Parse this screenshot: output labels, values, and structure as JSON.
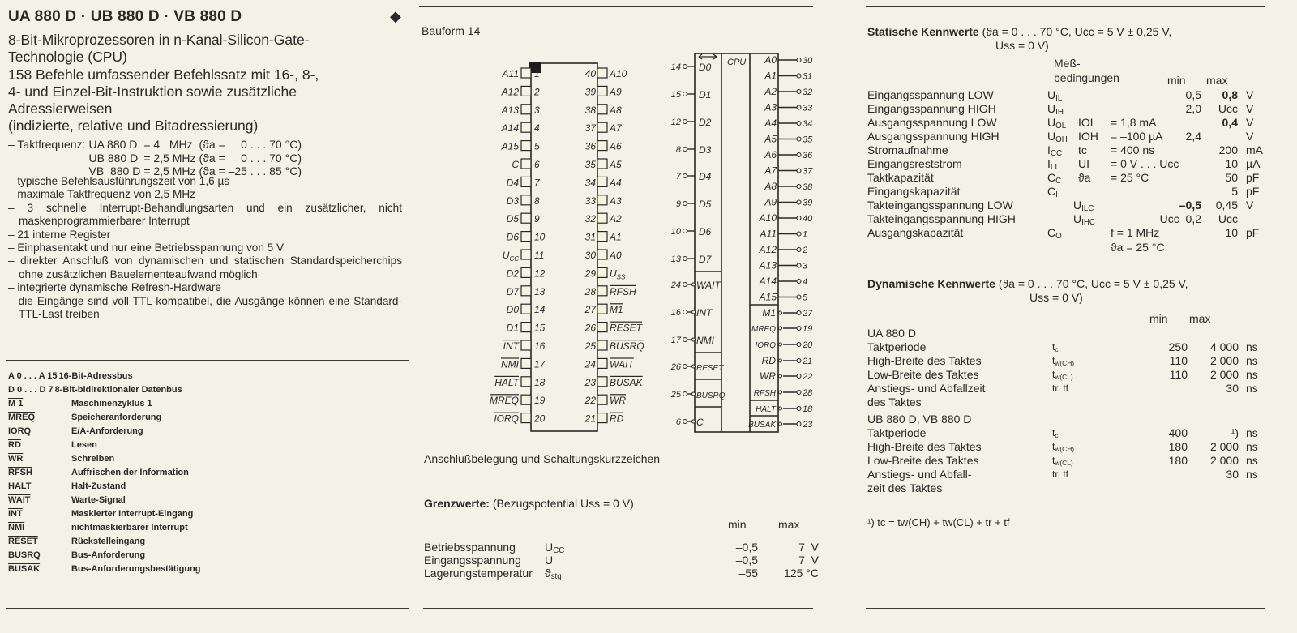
{
  "col1": {
    "title": "UA 880 D · UB 880 D · VB 880 D",
    "marker": "◆",
    "description": [
      "8-Bit-Mikroprozessoren in n-Kanal-Silicon-Gate-",
      "Technologie (CPU)",
      "158 Befehle umfassender Befehlssatz mit 16-, 8-,",
      "4- und Einzel-Bit-Instruktion sowie zusätzliche",
      "Adressierweisen",
      "(indizierte, relative und Bitadressierung)"
    ],
    "taktfrequenz": {
      "label": "– Taktfrequenz:",
      "rows": [
        {
          "type": "UA 880 D",
          "value": "= 4   MHz",
          "temp": "(ϑa =     0 . . . 70 °C)"
        },
        {
          "type": "UB 880 D",
          "value": "= 2,5 MHz",
          "temp": "(ϑa =     0 . . . 70 °C)"
        },
        {
          "type": "VB  880 D",
          "value": "= 2,5 MHz",
          "temp": "(ϑa = –25 . . . 85 °C)"
        }
      ]
    },
    "bullets": [
      "– typische Befehlsausführungszeit von 1,6 µs",
      "– maximale Taktfrequenz von 2,5 MHz",
      "– 3 schnelle Interrupt-Behandlungsarten und ein zusätzlicher, nicht maskenprogrammierbarer Interrupt",
      "– 21 interne Register",
      "– Einphasentakt und nur eine Betriebsspannung von 5 V",
      "– direkter Anschluß von dynamischen und statischen Standardspeicherchips ohne zusätzlichen Bauelementeaufwand möglich",
      "– integrierte dynamische Refresh-Hardware",
      "– die Eingänge sind voll TTL-kompatibel, die Ausgänge können eine Standard-TTL-Last treiben"
    ],
    "legend": [
      {
        "abbr": "A 0 . . . A 15",
        "text": "16-Bit-Adressbus",
        "overline": false
      },
      {
        "abbr": "D 0 . . . D 7",
        "text": "8-Bit-bidirektionaler Datenbus",
        "overline": false
      },
      {
        "abbr": "M 1",
        "text": "Maschinenzyklus 1",
        "overline": true
      },
      {
        "abbr": "MREQ",
        "text": "Speicheranforderung",
        "overline": true
      },
      {
        "abbr": "IORQ",
        "text": "E/A-Anforderung",
        "overline": true
      },
      {
        "abbr": "RD",
        "text": "Lesen",
        "overline": true
      },
      {
        "abbr": "WR",
        "text": "Schreiben",
        "overline": true
      },
      {
        "abbr": "RFSH",
        "text": "Auffrischen der Information",
        "overline": true
      },
      {
        "abbr": "HALT",
        "text": "Halt-Zustand",
        "overline": true
      },
      {
        "abbr": "WAIT",
        "text": "Warte-Signal",
        "overline": true
      },
      {
        "abbr": "INT",
        "text": "Maskierter Interrupt-Eingang",
        "overline": true
      },
      {
        "abbr": "NMI",
        "text": "nichtmaskierbarer Interrupt",
        "overline": true
      },
      {
        "abbr": "RESET",
        "text": "Rückstelleingang",
        "overline": true
      },
      {
        "abbr": "BUSRQ",
        "text": "Bus-Anforderung",
        "overline": true
      },
      {
        "abbr": "BUSAK",
        "text": "Bus-Anforderungsbestätigung",
        "overline": true
      }
    ]
  },
  "col2": {
    "package": "Bauform 14",
    "dip_left": [
      {
        "n": "1",
        "label": "A11"
      },
      {
        "n": "2",
        "label": "A12"
      },
      {
        "n": "3",
        "label": "A13"
      },
      {
        "n": "4",
        "label": "A14"
      },
      {
        "n": "5",
        "label": "A15"
      },
      {
        "n": "6",
        "label": "C"
      },
      {
        "n": "7",
        "label": "D4"
      },
      {
        "n": "8",
        "label": "D3"
      },
      {
        "n": "9",
        "label": "D5"
      },
      {
        "n": "10",
        "label": "D6"
      },
      {
        "n": "11",
        "label": "U",
        "sub": "CC"
      },
      {
        "n": "12",
        "label": "D2"
      },
      {
        "n": "13",
        "label": "D7"
      },
      {
        "n": "14",
        "label": "D0"
      },
      {
        "n": "15",
        "label": "D1"
      },
      {
        "n": "16",
        "label": "INT",
        "bar": true
      },
      {
        "n": "17",
        "label": "NMI",
        "bar": true
      },
      {
        "n": "18",
        "label": "HALT",
        "bar": true
      },
      {
        "n": "19",
        "label": "MREQ",
        "bar": true
      },
      {
        "n": "20",
        "label": "IORQ",
        "bar": true
      }
    ],
    "dip_right": [
      {
        "n": "40",
        "label": "A10"
      },
      {
        "n": "39",
        "label": "A9"
      },
      {
        "n": "38",
        "label": "A8"
      },
      {
        "n": "37",
        "label": "A7"
      },
      {
        "n": "36",
        "label": "A6"
      },
      {
        "n": "35",
        "label": "A5"
      },
      {
        "n": "34",
        "label": "A4"
      },
      {
        "n": "33",
        "label": "A3"
      },
      {
        "n": "32",
        "label": "A2"
      },
      {
        "n": "31",
        "label": "A1"
      },
      {
        "n": "30",
        "label": "A0"
      },
      {
        "n": "29",
        "label": "U",
        "sub": "SS"
      },
      {
        "n": "28",
        "label": "RFSH",
        "bar": true
      },
      {
        "n": "27",
        "label": "M1",
        "bar": true
      },
      {
        "n": "26",
        "label": "RESET",
        "bar": true
      },
      {
        "n": "25",
        "label": "BUSRQ",
        "bar": true
      },
      {
        "n": "24",
        "label": "WAIT",
        "bar": true
      },
      {
        "n": "23",
        "label": "BUSAK",
        "bar": true
      },
      {
        "n": "22",
        "label": "WR",
        "bar": true
      },
      {
        "n": "21",
        "label": "RD",
        "bar": true
      }
    ],
    "symbol": {
      "center_label": "CPU",
      "left": [
        {
          "n": "14",
          "label": "D0"
        },
        {
          "n": "15",
          "label": "D1"
        },
        {
          "n": "12",
          "label": "D2"
        },
        {
          "n": "8",
          "label": "D3"
        },
        {
          "n": "7",
          "label": "D4"
        },
        {
          "n": "9",
          "label": "D5"
        },
        {
          "n": "10",
          "label": "D6"
        },
        {
          "n": "13",
          "label": "D7"
        },
        {
          "n": "24",
          "label": "WAIT",
          "bubble": true
        },
        {
          "n": "16",
          "label": "INT",
          "bubble": true
        },
        {
          "n": "17",
          "label": "NMI",
          "bubble": true
        },
        {
          "n": "26",
          "label": "RESET",
          "bubble": true
        },
        {
          "n": "25",
          "label": "BUSRQ",
          "bubble": true
        },
        {
          "n": "6",
          "label": "C",
          "bubble": true
        }
      ],
      "right": [
        {
          "n": "30",
          "label": "A0"
        },
        {
          "n": "31",
          "label": "A1"
        },
        {
          "n": "32",
          "label": "A2"
        },
        {
          "n": "33",
          "label": "A3"
        },
        {
          "n": "34",
          "label": "A4"
        },
        {
          "n": "35",
          "label": "A5"
        },
        {
          "n": "36",
          "label": "A6"
        },
        {
          "n": "37",
          "label": "A7"
        },
        {
          "n": "38",
          "label": "A8"
        },
        {
          "n": "39",
          "label": "A9"
        },
        {
          "n": "40",
          "label": "A10"
        },
        {
          "n": "1",
          "label": "A11"
        },
        {
          "n": "2",
          "label": "A12"
        },
        {
          "n": "3",
          "label": "A13"
        },
        {
          "n": "4",
          "label": "A14"
        },
        {
          "n": "5",
          "label": "A15"
        },
        {
          "n": "27",
          "label": "M1",
          "bubble": true
        },
        {
          "n": "19",
          "label": "MREQ",
          "bubble": true
        },
        {
          "n": "20",
          "label": "IORQ",
          "bubble": true
        },
        {
          "n": "21",
          "label": "RD",
          "bubble": true
        },
        {
          "n": "22",
          "label": "WR",
          "bubble": true
        },
        {
          "n": "28",
          "label": "RFSH",
          "bubble": true
        },
        {
          "n": "18",
          "label": "HALT",
          "bubble": true
        },
        {
          "n": "23",
          "label": "BUSAK",
          "bubble": true
        }
      ]
    },
    "caption": "Anschlußbelegung und Schaltungskurzzeichen",
    "limits": {
      "title": "Grenzwerte:",
      "subtitle": "(Bezugspotential Uss = 0 V)",
      "min": "min",
      "max": "max",
      "rows": [
        {
          "label": "Betriebsspannung",
          "sym": "U",
          "sub": "CC",
          "min": "–0,5",
          "max": "7  V"
        },
        {
          "label": "Eingangsspannung",
          "sym": "U",
          "sub": "I",
          "min": "–0,5",
          "max": "7  V"
        },
        {
          "label": "Lagerungstemperatur",
          "sym": "ϑ",
          "sub": "stg",
          "min": "–55",
          "max": "125 °C"
        }
      ]
    }
  },
  "col3": {
    "static": {
      "title": "Statische Kennwerte",
      "cond1": "(ϑa = 0 . . . 70 °C, Ucc = 5 V ± 0,25 V,",
      "cond2": "Uss = 0 V)",
      "h_cond1": "Meß-",
      "h_cond2": "bedingungen",
      "h_min": "min",
      "h_max": "max",
      "rows": [
        {
          "label": "Eingangsspannung LOW",
          "sym": "U",
          "sub": "IL",
          "c1": "",
          "c2": "",
          "min": "–0,5",
          "max": "0,8",
          "unit": "V",
          "bold_max": true
        },
        {
          "label": "Eingangsspannung HIGH",
          "sym": "U",
          "sub": "IH",
          "c1": "",
          "c2": "",
          "min": "2,0",
          "max": "Ucc",
          "unit": "V"
        },
        {
          "label": "Ausgangsspannung LOW",
          "sym": "U",
          "sub": "OL",
          "c1": "IOL",
          "c2": "= 1,8 mA",
          "min": "",
          "max": "0,4",
          "unit": "V",
          "bold_max": true
        },
        {
          "label": "Ausgangsspannung HIGH",
          "sym": "U",
          "sub": "OH",
          "c1": "IOH",
          "c2": "= –100 µA",
          "min": "2,4",
          "max": "",
          "unit": "V"
        },
        {
          "label": "Stromaufnahme",
          "sym": "I",
          "sub": "CC",
          "c1": "tc",
          "c2": "= 400 ns",
          "min": "",
          "max": "200",
          "unit": "mA"
        },
        {
          "label": "Eingangsreststrom",
          "sym": "I",
          "sub": "LI",
          "c1": "UI",
          "c2": "= 0 V . . . Ucc",
          "min": "",
          "max": "10",
          "unit": "µA"
        },
        {
          "label": "Taktkapazität",
          "sym": "C",
          "sub": "C",
          "c1": "ϑa",
          "c2": "= 25 °C",
          "min": "",
          "max": "50",
          "unit": "pF"
        },
        {
          "label": "Eingangskapazität",
          "sym": "C",
          "sub": "I",
          "c1": "",
          "c2": "",
          "min": "",
          "max": "5",
          "unit": "pF"
        },
        {
          "label": "Takteingangsspannung LOW",
          "sym": "U",
          "sub": "ILC",
          "c1": "",
          "c2": "",
          "min": "–0,5",
          "max": "0,45",
          "unit": "V",
          "bold_min": true
        },
        {
          "label": "Takteingangsspannung HIGH",
          "sym": "U",
          "sub": "IHC",
          "c1": "",
          "c2": "",
          "min": "Ucc–0,2",
          "max": "Ucc",
          "unit": ""
        },
        {
          "label": "Ausgangskapazität",
          "sym": "C",
          "sub": "O",
          "c1": "",
          "c2": "f = 1 MHz",
          "min": "",
          "max": "10",
          "unit": "pF"
        }
      ],
      "cond_extra": "ϑa = 25 °C"
    },
    "dynamic": {
      "title": "Dynamische Kennwerte",
      "cond1": "(ϑa = 0 . . . 70 °C, Ucc = 5 V ± 0,25 V,",
      "cond2": "Uss = 0 V)",
      "h_min": "min",
      "h_max": "max",
      "groups": [
        {
          "name": "UA 880 D",
          "rows": [
            {
              "label": "Taktperiode",
              "sym": "t",
              "sub": "c",
              "min": "250",
              "max": "4 000",
              "unit": "ns"
            },
            {
              "label": "High-Breite des Taktes",
              "sym": "t",
              "sub": "w(CH)",
              "min": "110",
              "max": "2 000",
              "unit": "ns"
            },
            {
              "label": "Low-Breite des Taktes",
              "sym": "t",
              "sub": "w(CL)",
              "min": "110",
              "max": "2 000",
              "unit": "ns"
            },
            {
              "label": "Anstiegs- und Abfallzeit",
              "label2": "des Taktes",
              "sym": "tr, tf",
              "sub": "",
              "min": "",
              "max": "30",
              "unit": "ns"
            }
          ]
        },
        {
          "name": "UB 880 D, VB 880 D",
          "rows": [
            {
              "label": "Taktperiode",
              "sym": "t",
              "sub": "c",
              "min": "400",
              "max": "¹)",
              "unit": "ns"
            },
            {
              "label": "High-Breite des Taktes",
              "sym": "t",
              "sub": "w(CH)",
              "min": "180",
              "max": "2 000",
              "unit": "ns"
            },
            {
              "label": "Low-Breite des Taktes",
              "sym": "t",
              "sub": "w(CL)",
              "min": "180",
              "max": "2 000",
              "unit": "ns"
            },
            {
              "label": "Anstiegs- und Abfall-",
              "label2": "zeit des Taktes",
              "sym": "tr, tf",
              "sub": "",
              "min": "",
              "max": "30",
              "unit": "ns"
            }
          ]
        }
      ],
      "footnote": "¹)  tc = tw(CH) + tw(CL) + tr + tf"
    }
  }
}
